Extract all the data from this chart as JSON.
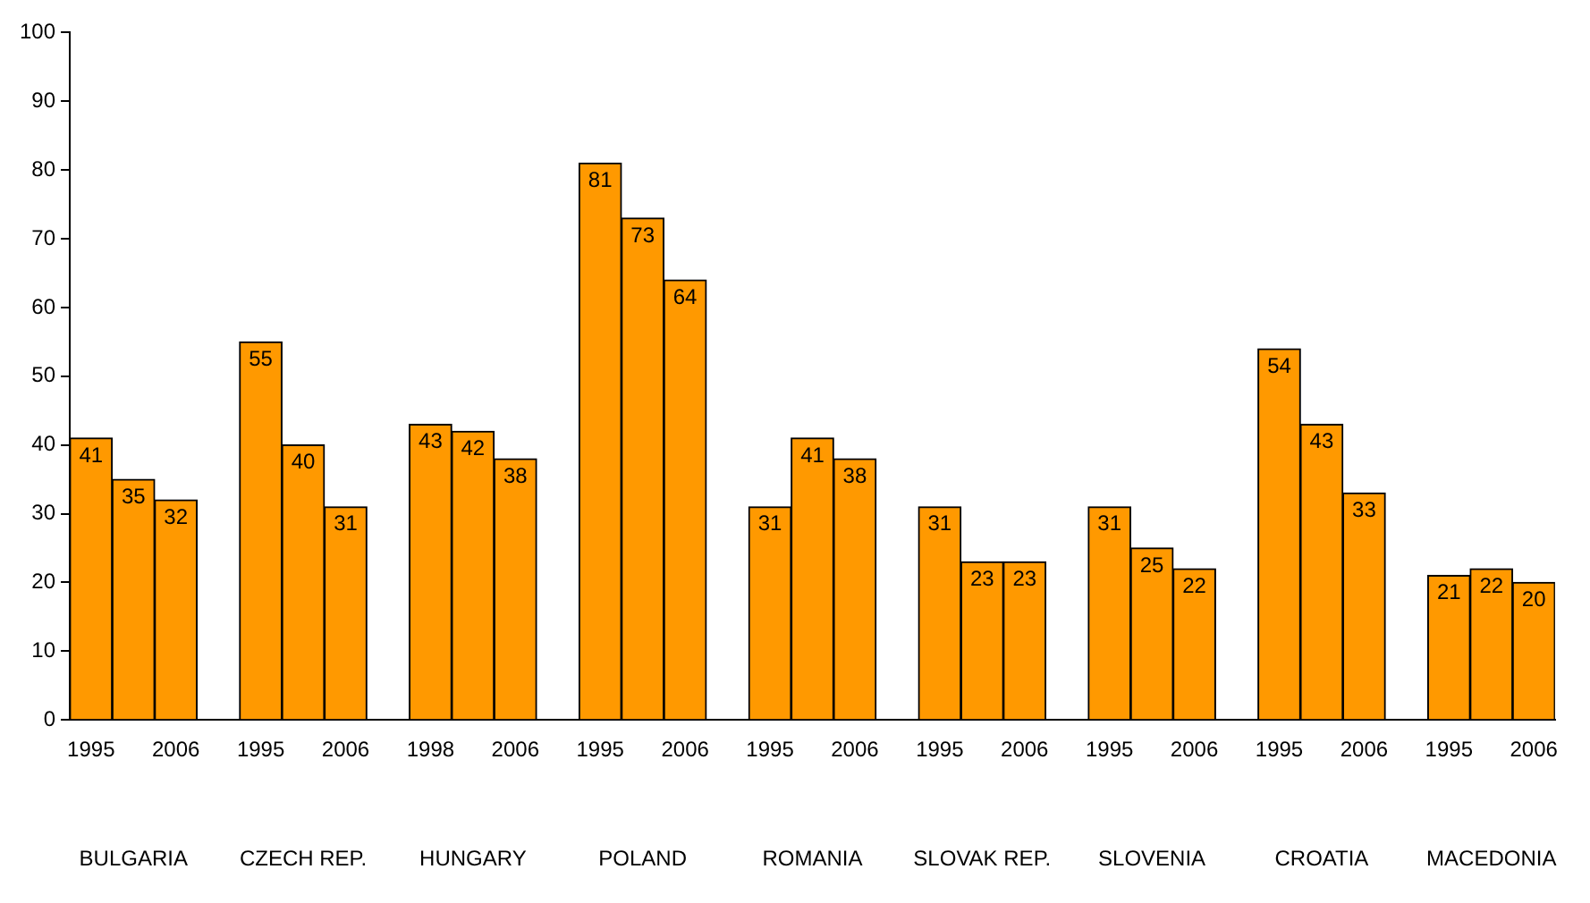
{
  "chart_data": {
    "type": "bar",
    "categories": [
      "1995",
      null,
      "2006",
      null,
      "1995",
      null,
      "2006",
      null,
      "1998",
      null,
      "2006",
      null,
      "1995",
      null,
      "2006",
      null,
      "1995",
      null,
      "2006",
      null,
      "1995",
      null,
      "2006",
      null,
      "1995",
      null,
      "2006",
      null,
      "1995",
      null,
      "2006",
      null,
      "1995",
      null,
      "2006"
    ],
    "values": [
      41,
      35,
      32,
      null,
      55,
      40,
      31,
      null,
      43,
      42,
      38,
      null,
      81,
      73,
      64,
      null,
      31,
      41,
      38,
      null,
      31,
      23,
      23,
      null,
      31,
      25,
      22,
      null,
      54,
      43,
      33,
      null,
      21,
      22,
      20
    ],
    "color": "#ff9900",
    "ylim": [
      0,
      100
    ],
    "yticks": [
      0,
      10,
      20,
      30,
      40,
      50,
      60,
      70,
      80,
      90,
      100
    ],
    "grid": false,
    "legend": false,
    "data_labels": true,
    "annotations": [
      "BULGARIA",
      "CZECH REP.",
      "HUNGARY",
      "POLAND",
      "ROMANIA",
      "SLOVAK REP.",
      "SLOVENIA",
      "CROATIA",
      "MACEDONIA"
    ]
  }
}
